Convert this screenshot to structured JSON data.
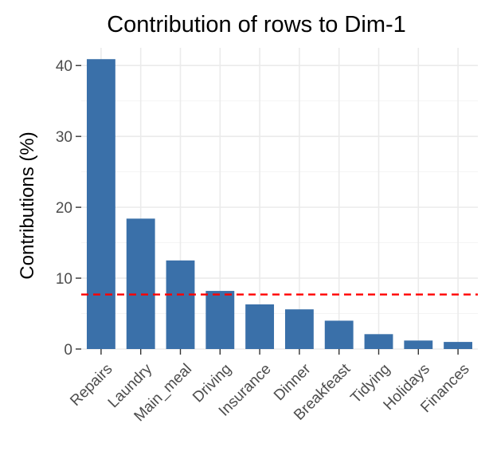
{
  "chart_data": {
    "type": "bar",
    "title": "Contribution of rows to Dim-1",
    "xlabel": "",
    "ylabel": "Contributions (%)",
    "categories": [
      "Repairs",
      "Laundry",
      "Main_meal",
      "Driving",
      "Insurance",
      "Dinner",
      "Breakfeast",
      "Tidying",
      "Holidays",
      "Finances"
    ],
    "values": [
      40.9,
      18.4,
      12.5,
      8.2,
      6.3,
      5.6,
      4.0,
      2.1,
      1.2,
      1.0
    ],
    "ylim": [
      0,
      42.5
    ],
    "yticks": [
      0,
      10,
      20,
      30,
      40
    ],
    "reference_line": {
      "value": 7.7,
      "style": "dashed",
      "color": "#ff0000"
    },
    "bar_color": "#3a70a9",
    "grid": true,
    "legend": "none"
  }
}
